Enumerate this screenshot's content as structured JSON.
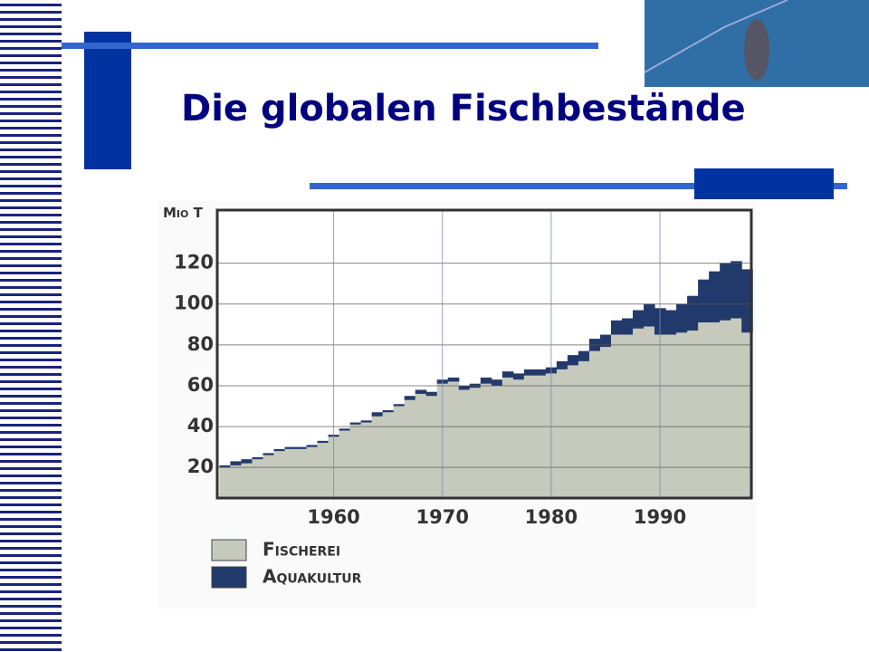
{
  "header": {
    "title": "Die globalen Fischbestände"
  },
  "chart_data": {
    "type": "stacked-step-bar",
    "y_label": "Mio T",
    "x": [
      1950,
      1951,
      1952,
      1953,
      1954,
      1955,
      1956,
      1957,
      1958,
      1959,
      1960,
      1961,
      1962,
      1963,
      1964,
      1965,
      1966,
      1967,
      1968,
      1969,
      1970,
      1971,
      1972,
      1973,
      1974,
      1975,
      1976,
      1977,
      1978,
      1979,
      1980,
      1981,
      1982,
      1983,
      1984,
      1985,
      1986,
      1987,
      1988,
      1989,
      1990,
      1991,
      1992,
      1993,
      1994,
      1995,
      1996,
      1997,
      1998
    ],
    "series": [
      {
        "name": "Fischerei",
        "color": "#c5cabd",
        "values": [
          20,
          21,
          22,
          24,
          26,
          28,
          29,
          29,
          30,
          32,
          35,
          38,
          41,
          42,
          45,
          47,
          50,
          53,
          56,
          55,
          61,
          62,
          58,
          59,
          61,
          60,
          64,
          63,
          65,
          65,
          66,
          68,
          70,
          72,
          77,
          79,
          85,
          85,
          88,
          89,
          85,
          85,
          86,
          87,
          91,
          91,
          92,
          93,
          86
        ]
      },
      {
        "name": "Aquakultur",
        "color": "#223a6b",
        "values": [
          1,
          2,
          2,
          1,
          1,
          1,
          1,
          1,
          1,
          1,
          1,
          1,
          1,
          1,
          2,
          1,
          1,
          2,
          2,
          2,
          2,
          2,
          2,
          2,
          3,
          3,
          3,
          3,
          3,
          3,
          3,
          4,
          5,
          5,
          6,
          6,
          7,
          8,
          9,
          11,
          13,
          12,
          14,
          17,
          21,
          25,
          28,
          28,
          31
        ]
      }
    ],
    "xlim": [
      1949.3,
      1998.4
    ],
    "xticks": [
      1960,
      1970,
      1980,
      1990
    ],
    "ylim": [
      5,
      146
    ],
    "yticks": [
      20,
      40,
      60,
      80,
      100,
      120
    ],
    "grid": true
  }
}
